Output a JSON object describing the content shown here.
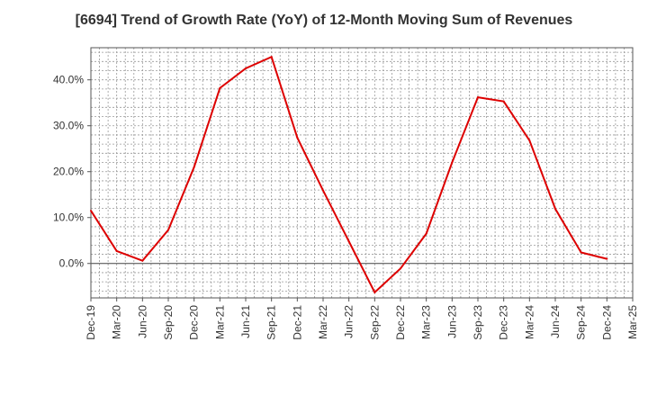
{
  "chart_data": {
    "type": "line",
    "title": "[6694]  Trend of Growth Rate (YoY) of 12-Month Moving Sum of Revenues",
    "xlabel": "",
    "ylabel": "",
    "x_ticks": [
      "Dec-19",
      "Mar-20",
      "Jun-20",
      "Sep-20",
      "Dec-20",
      "Mar-21",
      "Jun-21",
      "Sep-21",
      "Dec-21",
      "Mar-22",
      "Jun-22",
      "Sep-22",
      "Dec-22",
      "Mar-23",
      "Jun-23",
      "Sep-23",
      "Dec-23",
      "Mar-24",
      "Jun-24",
      "Sep-24",
      "Dec-24",
      "Mar-25"
    ],
    "y_ticks": [
      0,
      10,
      20,
      30,
      40
    ],
    "y_tick_format": "percent_1dp",
    "ylim": [
      -7.5,
      47
    ],
    "grid": true,
    "series": [
      {
        "color": "#dd0000",
        "x": [
          "Dec-19",
          "Mar-20",
          "Jun-20",
          "Sep-20",
          "Dec-20",
          "Mar-21",
          "Jun-21",
          "Sep-21",
          "Dec-21",
          "Mar-22",
          "Jun-22",
          "Sep-22",
          "Dec-22",
          "Mar-23",
          "Jun-23",
          "Sep-23",
          "Dec-23",
          "Mar-24",
          "Jun-24",
          "Sep-24",
          "Dec-24"
        ],
        "values": [
          11.5,
          2.7,
          0.6,
          7.3,
          21.0,
          38.2,
          42.5,
          45.0,
          27.4,
          15.9,
          4.8,
          -6.3,
          -1.1,
          6.5,
          22.0,
          36.2,
          35.3,
          26.8,
          11.9,
          2.4,
          1.0
        ]
      }
    ]
  }
}
